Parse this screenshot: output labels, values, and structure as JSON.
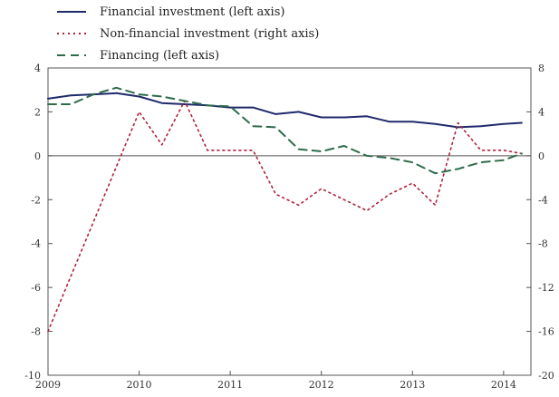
{
  "chart_data": {
    "type": "line",
    "title": "",
    "xlabel": "",
    "ylabel": "",
    "legend_position": "top-left",
    "grid": false,
    "x_ticks": [
      "2009",
      "2010",
      "2011",
      "2012",
      "2013",
      "2014"
    ],
    "x_range": [
      2009.0,
      2014.3
    ],
    "left_axis": {
      "ylim": [
        -10,
        4
      ],
      "ticks": [
        "4",
        "2",
        "0",
        "-2",
        "-4",
        "-6",
        "-8",
        "-10"
      ]
    },
    "right_axis": {
      "ylim": [
        -20,
        8
      ],
      "ticks": [
        "8",
        "4",
        "0",
        "-4",
        "-8",
        "-12",
        "-16",
        "-20"
      ]
    },
    "series": [
      {
        "name": "Financial investment (left axis)",
        "axis": "left",
        "color": "#1f2a6b",
        "style": "solid",
        "points": [
          [
            2009.0,
            2.6
          ],
          [
            2009.25,
            2.75
          ],
          [
            2009.5,
            2.8
          ],
          [
            2009.75,
            2.85
          ],
          [
            2010.0,
            2.7
          ],
          [
            2010.25,
            2.4
          ],
          [
            2010.5,
            2.35
          ],
          [
            2010.75,
            2.3
          ],
          [
            2011.0,
            2.2
          ],
          [
            2011.25,
            2.2
          ],
          [
            2011.5,
            1.9
          ],
          [
            2011.75,
            2.0
          ],
          [
            2012.0,
            1.75
          ],
          [
            2012.25,
            1.75
          ],
          [
            2012.5,
            1.8
          ],
          [
            2012.75,
            1.55
          ],
          [
            2013.0,
            1.55
          ],
          [
            2013.25,
            1.45
          ],
          [
            2013.5,
            1.3
          ],
          [
            2013.75,
            1.35
          ],
          [
            2014.0,
            1.45
          ],
          [
            2014.2,
            1.5
          ]
        ]
      },
      {
        "name": "Non-financial investment (right axis)",
        "axis": "right",
        "color": "#b0203a",
        "style": "dotted",
        "points": [
          [
            2009.0,
            -16
          ],
          [
            2009.25,
            -11
          ],
          [
            2009.5,
            -6
          ],
          [
            2009.75,
            -1
          ],
          [
            2010.0,
            4
          ],
          [
            2010.25,
            1
          ],
          [
            2010.5,
            5
          ],
          [
            2010.75,
            0.5
          ],
          [
            2011.0,
            0.5
          ],
          [
            2011.25,
            0.5
          ],
          [
            2011.5,
            -3.5
          ],
          [
            2011.75,
            -4.5
          ],
          [
            2012.0,
            -3
          ],
          [
            2012.25,
            -4
          ],
          [
            2012.5,
            -5
          ],
          [
            2012.75,
            -3.5
          ],
          [
            2013.0,
            -2.5
          ],
          [
            2013.25,
            -4.5
          ],
          [
            2013.5,
            3
          ],
          [
            2013.75,
            0.5
          ],
          [
            2014.0,
            0.5
          ],
          [
            2014.2,
            0.2
          ]
        ]
      },
      {
        "name": "Financing (left axis)",
        "axis": "left",
        "color": "#2f6b4a",
        "style": "dashed",
        "points": [
          [
            2009.0,
            2.35
          ],
          [
            2009.25,
            2.35
          ],
          [
            2009.5,
            2.8
          ],
          [
            2009.75,
            3.1
          ],
          [
            2010.0,
            2.8
          ],
          [
            2010.25,
            2.7
          ],
          [
            2010.5,
            2.5
          ],
          [
            2010.75,
            2.3
          ],
          [
            2011.0,
            2.25
          ],
          [
            2011.25,
            1.35
          ],
          [
            2011.5,
            1.3
          ],
          [
            2011.75,
            0.3
          ],
          [
            2012.0,
            0.2
          ],
          [
            2012.25,
            0.45
          ],
          [
            2012.5,
            0.0
          ],
          [
            2012.75,
            -0.1
          ],
          [
            2013.0,
            -0.3
          ],
          [
            2013.25,
            -0.8
          ],
          [
            2013.5,
            -0.6
          ],
          [
            2013.75,
            -0.3
          ],
          [
            2014.0,
            -0.2
          ],
          [
            2014.2,
            0.1
          ]
        ]
      }
    ]
  }
}
